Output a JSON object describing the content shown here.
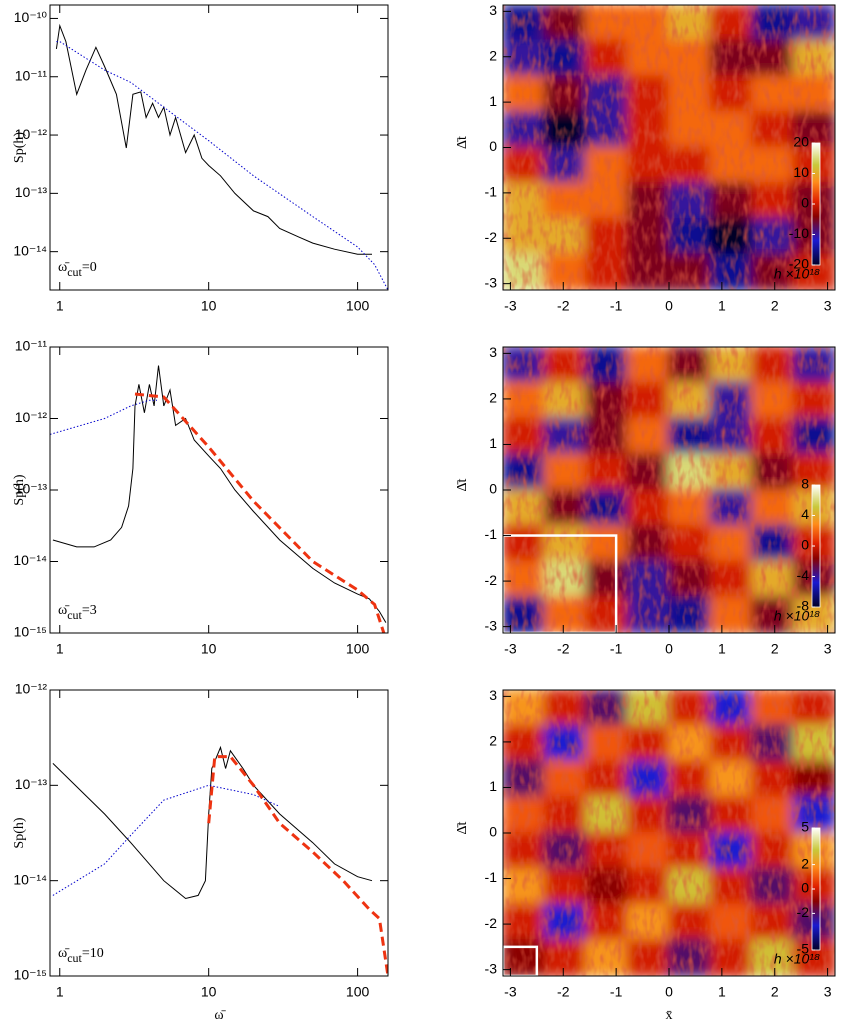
{
  "chart_data": [
    {
      "type": "line",
      "xlog": true,
      "ylog": true,
      "ylabel": "Sp(h)",
      "annotation": {
        "symbol": "ω̄",
        "subscript": "cut",
        "text": "=0"
      },
      "xlim": [
        0.86,
        160
      ],
      "ylim": [
        2.2e-15,
        1.7e-10
      ],
      "xticks": [
        1,
        10,
        100
      ],
      "yticks": [
        {
          "value": 1e-14,
          "label": "10⁻¹⁴"
        },
        {
          "value": 1e-13,
          "label": "10⁻¹³"
        },
        {
          "value": 1e-12,
          "label": "10⁻¹²"
        },
        {
          "value": 1e-11,
          "label": "10⁻¹¹"
        },
        {
          "value": 1e-10,
          "label": "10⁻¹⁰"
        }
      ],
      "series": [
        {
          "color": "#000000",
          "style": "solid",
          "x": [
            0.95,
            1.0,
            1.1,
            1.3,
            1.5,
            1.75,
            2.0,
            2.4,
            2.8,
            3.1,
            3.5,
            3.8,
            4.2,
            4.6,
            5,
            5.5,
            6,
            7,
            8,
            9,
            10,
            12,
            15,
            20,
            25,
            30,
            40,
            50,
            70,
            100,
            125
          ],
          "values": [
            3e-11,
            7.5e-11,
            4e-11,
            5e-12,
            1.3e-11,
            3.2e-11,
            1.5e-11,
            5e-12,
            6e-13,
            5e-12,
            5.5e-12,
            2e-12,
            3.5e-12,
            2e-12,
            3e-12,
            1e-12,
            2e-12,
            5e-13,
            1e-12,
            4e-13,
            3e-13,
            2e-13,
            1e-13,
            5e-14,
            4e-14,
            2.5e-14,
            1.8e-14,
            1.4e-14,
            1.1e-14,
            9e-15,
            9e-15
          ]
        },
        {
          "color": "#0000cc",
          "style": "dotted",
          "x": [
            0.95,
            1,
            2,
            3,
            5,
            10,
            20,
            50,
            100,
            130,
            160
          ],
          "values": [
            4e-11,
            4e-11,
            1.3e-11,
            8e-12,
            3e-12,
            8e-13,
            2e-13,
            4e-14,
            1.2e-14,
            6e-15,
            2.2e-15
          ]
        }
      ]
    },
    {
      "type": "heatmap",
      "ylabel": "Δ̄t",
      "xlim": [
        -3.14,
        3.14
      ],
      "ylim": [
        -3.14,
        3.14
      ],
      "xticks": [
        -3,
        -2,
        -1,
        0,
        1,
        2,
        3
      ],
      "yticks": [
        -3,
        -2,
        -1,
        0,
        1,
        2,
        3
      ],
      "zlim": [
        -20,
        20
      ],
      "colorbar": {
        "ticks": [
          -20,
          -10,
          0,
          10,
          20
        ],
        "label": "h ×10¹⁸"
      },
      "z": [
        [
          -15,
          -5,
          5,
          5,
          10,
          0,
          -15,
          -10
        ],
        [
          -10,
          -15,
          0,
          5,
          5,
          -5,
          -5,
          10
        ],
        [
          5,
          -5,
          -10,
          0,
          5,
          0,
          5,
          5
        ],
        [
          -10,
          -20,
          -10,
          0,
          5,
          5,
          0,
          -5
        ],
        [
          0,
          -10,
          5,
          0,
          0,
          5,
          5,
          0
        ],
        [
          10,
          5,
          5,
          -5,
          -10,
          -5,
          0,
          -5
        ],
        [
          10,
          10,
          0,
          -5,
          -15,
          -20,
          -10,
          -5
        ],
        [
          15,
          5,
          0,
          -5,
          -5,
          -15,
          -5,
          0
        ]
      ]
    },
    {
      "type": "line",
      "xlog": true,
      "ylog": true,
      "ylabel": "Sp(h)",
      "annotation": {
        "symbol": "ω̄",
        "subscript": "cut",
        "text": "=3"
      },
      "xlim": [
        0.86,
        160
      ],
      "ylim": [
        1e-15,
        1e-11
      ],
      "xticks": [
        1,
        10,
        100
      ],
      "yticks": [
        {
          "value": 1e-15,
          "label": "10⁻¹⁵"
        },
        {
          "value": 1e-14,
          "label": "10⁻¹⁴"
        },
        {
          "value": 1e-13,
          "label": "10⁻¹³"
        },
        {
          "value": 1e-12,
          "label": "10⁻¹²"
        },
        {
          "value": 1e-11,
          "label": "10⁻¹¹"
        }
      ],
      "series": [
        {
          "color": "#000000",
          "style": "solid",
          "x": [
            0.9,
            1.3,
            1.7,
            2.2,
            2.6,
            2.9,
            3.1,
            3.2,
            3.4,
            3.7,
            4,
            4.3,
            4.6,
            5,
            5.5,
            6,
            7,
            8,
            10,
            12,
            15,
            20,
            30,
            50,
            70,
            100,
            120,
            140,
            155
          ],
          "values": [
            2e-14,
            1.6e-14,
            1.6e-14,
            2e-14,
            3e-14,
            6e-14,
            2e-13,
            1.5e-12,
            3e-12,
            1.2e-12,
            3e-12,
            1.5e-12,
            5.5e-12,
            1.5e-12,
            2.5e-12,
            8e-13,
            1e-12,
            5e-13,
            3e-13,
            2e-13,
            1e-13,
            5e-14,
            2e-14,
            8e-15,
            5e-15,
            3.5e-15,
            3e-15,
            2e-15,
            1.4e-15
          ]
        },
        {
          "color": "#0000cc",
          "style": "dotted",
          "x": [
            0.86,
            2,
            3,
            4,
            4.5
          ],
          "values": [
            6e-13,
            1e-12,
            1.5e-12,
            1.8e-12,
            1.8e-12
          ]
        },
        {
          "color": "#ee3311",
          "style": "dashed",
          "x": [
            3.2,
            5,
            10,
            20,
            50,
            100,
            130,
            150
          ],
          "values": [
            2.2e-12,
            2e-12,
            4e-13,
            7e-14,
            1e-14,
            4e-15,
            2.5e-15,
            1e-15
          ]
        }
      ]
    },
    {
      "type": "heatmap",
      "ylabel": "Δ̄t",
      "xlim": [
        -3.14,
        3.14
      ],
      "ylim": [
        -3.14,
        3.14
      ],
      "xticks": [
        -3,
        -2,
        -1,
        0,
        1,
        2,
        3
      ],
      "yticks": [
        -3,
        -2,
        -1,
        0,
        1,
        2,
        3
      ],
      "zlim": [
        -8,
        8
      ],
      "colorbar": {
        "ticks": [
          -8,
          -4,
          0,
          4,
          8
        ],
        "label": "h ×10¹⁸"
      },
      "box": {
        "x": [
          -3.14,
          -1
        ],
        "y": [
          -3.14,
          -1
        ]
      },
      "z": [
        [
          -4,
          0,
          -6,
          2,
          -2,
          4,
          0,
          -4
        ],
        [
          2,
          4,
          -2,
          0,
          4,
          -4,
          2,
          0
        ],
        [
          0,
          -4,
          -2,
          2,
          -6,
          -4,
          0,
          -6
        ],
        [
          -6,
          2,
          0,
          -2,
          6,
          4,
          -2,
          0
        ],
        [
          4,
          -2,
          -6,
          0,
          2,
          -4,
          2,
          4
        ],
        [
          0,
          4,
          2,
          -2,
          0,
          2,
          -6,
          0
        ],
        [
          2,
          6,
          -2,
          -4,
          -2,
          0,
          4,
          -2
        ],
        [
          -6,
          2,
          0,
          -4,
          -6,
          2,
          -2,
          4
        ]
      ]
    },
    {
      "type": "line",
      "xlog": true,
      "ylog": true,
      "ylabel": "Sp(h)",
      "xlabel": "ω̄",
      "annotation": {
        "symbol": "ω̄",
        "subscript": "cut",
        "text": "=10"
      },
      "xlim": [
        0.86,
        160
      ],
      "ylim": [
        1e-15,
        1e-12
      ],
      "xticks": [
        1,
        10,
        100
      ],
      "yticks": [
        {
          "value": 1e-15,
          "label": "10⁻¹⁵"
        },
        {
          "value": 1e-14,
          "label": "10⁻¹⁴"
        },
        {
          "value": 1e-13,
          "label": "10⁻¹³"
        },
        {
          "value": 1e-12,
          "label": "10⁻¹²"
        }
      ],
      "series": [
        {
          "color": "#000000",
          "style": "solid",
          "x": [
            0.9,
            2,
            3,
            5,
            7,
            8.5,
            9.5,
            10,
            10.5,
            12,
            13,
            14,
            17,
            20,
            30,
            50,
            70,
            100,
            125
          ],
          "values": [
            1.7e-13,
            5e-14,
            2.5e-14,
            1e-14,
            6.5e-15,
            7e-15,
            1e-14,
            5e-14,
            1.5e-13,
            2.5e-13,
            1.5e-13,
            2.3e-13,
            1.5e-13,
            1e-13,
            5e-14,
            2.5e-14,
            1.5e-14,
            1.1e-14,
            1e-14
          ]
        },
        {
          "color": "#0000cc",
          "style": "dotted",
          "x": [
            0.9,
            2,
            3,
            5,
            10,
            20,
            30
          ],
          "values": [
            7e-15,
            1.5e-14,
            3e-14,
            7e-14,
            1e-13,
            8e-14,
            6e-14
          ]
        },
        {
          "color": "#ee3311",
          "style": "dashed",
          "x": [
            10,
            11,
            14,
            20,
            30,
            50,
            80,
            120,
            140,
            160
          ],
          "values": [
            4e-14,
            2e-13,
            2e-13,
            1e-13,
            4e-14,
            2e-14,
            1e-14,
            5e-15,
            4e-15,
            1e-15
          ]
        }
      ]
    },
    {
      "type": "heatmap",
      "ylabel": "Δ̄t",
      "xlabel": "x̄",
      "xlim": [
        -3.14,
        3.14
      ],
      "ylim": [
        -3.14,
        3.14
      ],
      "xticks": [
        -3,
        -2,
        -1,
        0,
        1,
        2,
        3
      ],
      "yticks": [
        -3,
        -2,
        -1,
        0,
        1,
        2,
        3
      ],
      "zlim": [
        -5,
        5
      ],
      "colorbar": {
        "ticks": [
          -5,
          -2,
          0,
          2,
          5
        ],
        "label": "h ×10¹⁸"
      },
      "box": {
        "x": [
          -3.14,
          -2.5
        ],
        "y": [
          -3.14,
          -2.5
        ]
      },
      "z": [
        [
          2,
          0,
          -2,
          3,
          0,
          -3,
          1,
          0
        ],
        [
          0,
          -3,
          1,
          0,
          2,
          0,
          -2,
          3
        ],
        [
          -2,
          1,
          0,
          -3,
          0,
          2,
          0,
          -1
        ],
        [
          1,
          0,
          3,
          0,
          -2,
          0,
          1,
          -3
        ],
        [
          0,
          -2,
          0,
          1,
          0,
          -3,
          0,
          2
        ],
        [
          2,
          0,
          -1,
          0,
          3,
          0,
          -2,
          0
        ],
        [
          0,
          -3,
          0,
          2,
          0,
          1,
          0,
          -2
        ],
        [
          -1,
          0,
          2,
          0,
          -2,
          0,
          3,
          0
        ]
      ]
    }
  ]
}
